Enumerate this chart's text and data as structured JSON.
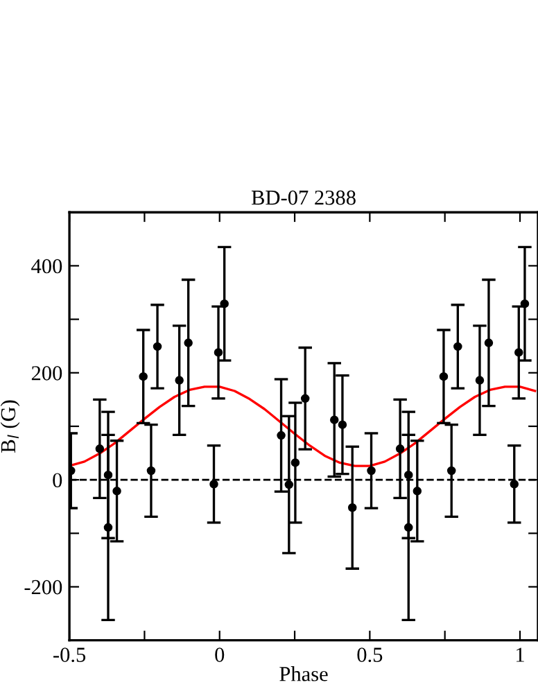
{
  "chart_data": {
    "type": "scatter",
    "title": "BD-07 2388",
    "xlabel": "Phase",
    "ylabel": "B$_{l}$ (G)",
    "xlim": [
      -0.5,
      1.06
    ],
    "ylim": [
      -300,
      500
    ],
    "xticks": [
      -0.5,
      {
        "value": -0.25,
        "label": null
      },
      0,
      {
        "value": 0.25,
        "label": null
      },
      0.5,
      {
        "value": 0.75,
        "label": null
      },
      1
    ],
    "yticks": [
      {
        "value": -300,
        "label": null
      },
      -200,
      {
        "value": -100,
        "label": null
      },
      0,
      {
        "value": 100,
        "label": null
      },
      200,
      {
        "value": 300,
        "label": null
      },
      400,
      {
        "value": 500,
        "label": null
      }
    ],
    "grid": false,
    "legend": false,
    "ref_lines": [
      {
        "axis": "y",
        "value": 0,
        "color": "#000000",
        "line_style": "dashed"
      }
    ],
    "series": [
      {
        "color": "#000000",
        "marker": "circle",
        "x": [
          -0.495,
          -0.399,
          -0.371,
          -0.371,
          -0.342,
          -0.254,
          -0.228,
          -0.207,
          -0.134,
          -0.104,
          -0.019,
          -0.004,
          0.016,
          0.205,
          0.231,
          0.252,
          0.285,
          0.382,
          0.409,
          0.442,
          0.505,
          0.601,
          0.629,
          0.629,
          0.658,
          0.746,
          0.772,
          0.793,
          0.866,
          0.896,
          0.981,
          0.996,
          1.016
        ],
        "values": [
          17,
          58,
          9,
          -89,
          -21,
          193,
          17,
          249,
          186,
          256,
          -8,
          238,
          329,
          83,
          -9,
          32,
          152,
          112,
          103,
          -52,
          17,
          58,
          9,
          -89,
          -21,
          193,
          17,
          249,
          186,
          256,
          -8,
          238,
          329
        ],
        "errors": [
          70,
          92,
          118,
          173,
          94,
          87,
          86,
          78,
          102,
          118,
          72,
          86,
          106,
          105,
          128,
          112,
          95,
          106,
          92,
          114,
          70,
          92,
          118,
          173,
          94,
          87,
          86,
          78,
          102,
          118,
          72,
          86,
          106
        ]
      },
      {
        "type": "line",
        "color": "#ff0000",
        "marker": "none",
        "line_style": "solid",
        "x": [
          -0.5,
          -0.45,
          -0.4,
          -0.35,
          -0.3,
          -0.25,
          -0.2,
          -0.15,
          -0.1,
          -0.05,
          0,
          0.05,
          0.1,
          0.15,
          0.2,
          0.25,
          0.3,
          0.35,
          0.4,
          0.45,
          0.5,
          0.55,
          0.6,
          0.65,
          0.7,
          0.75,
          0.8,
          0.85,
          0.9,
          0.95,
          1.0,
          1.05
        ],
        "values": [
          26,
          34,
          49,
          68,
          91,
          114,
          136,
          155,
          168,
          174,
          174,
          166,
          151,
          132,
          109,
          86,
          64,
          45,
          32,
          26,
          26,
          34,
          49,
          68,
          91,
          114,
          136,
          155,
          168,
          174,
          174,
          166
        ]
      }
    ]
  }
}
